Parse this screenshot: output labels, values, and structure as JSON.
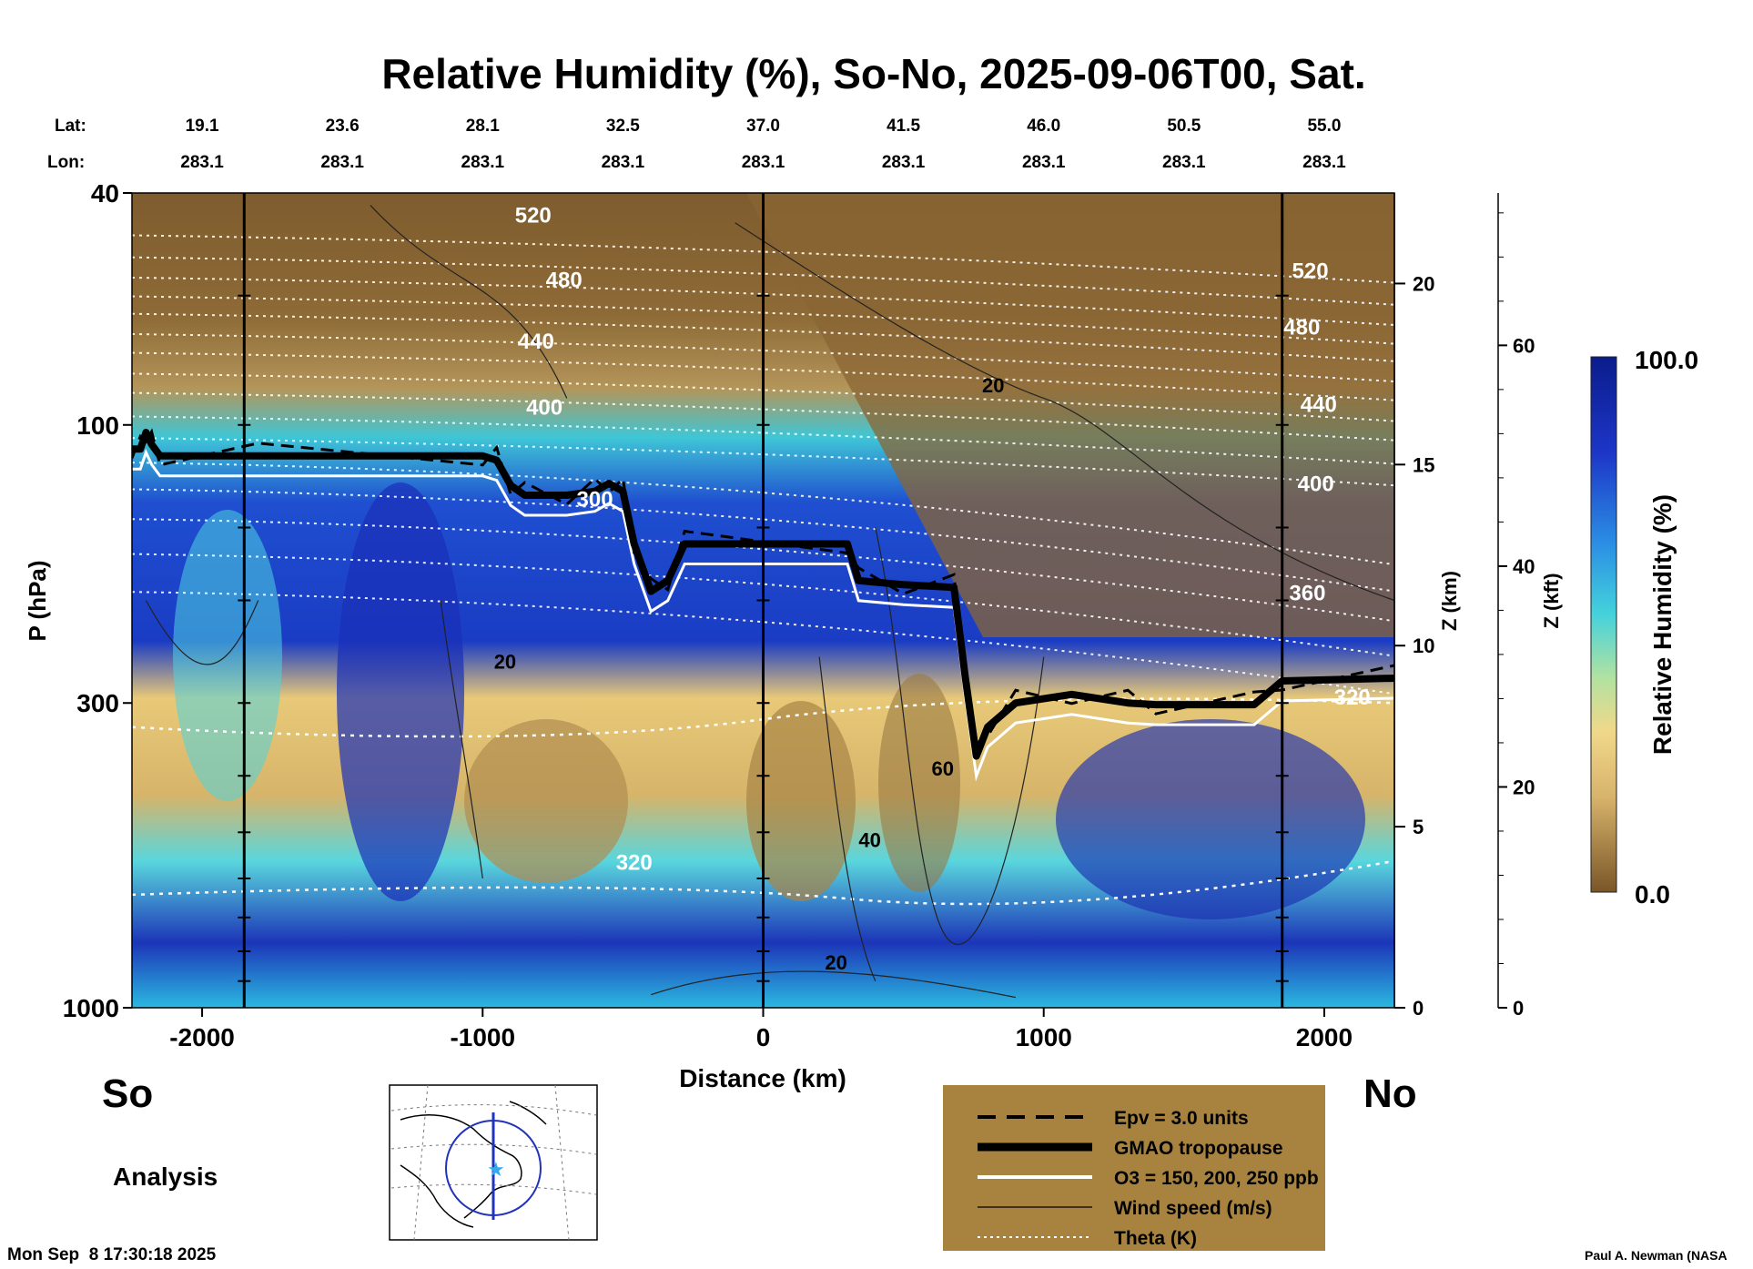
{
  "chart_data": {
    "type": "heatmap",
    "title": "Relative Humidity (%), So-No, 2025-09-06T00, Sat.",
    "xlabel": "Distance (km)",
    "ylabel": "P (hPa)",
    "z_km_label": "Z (km)",
    "z_kft_label": "Z (kft)",
    "colorbar_label": "Relative Humidity (%)",
    "colorbar_ticks": [
      "100.0",
      "0.0"
    ],
    "colorbar_range": [
      0,
      100
    ],
    "x_range": [
      -2250,
      2250
    ],
    "x_ticks": [
      -2000,
      -1000,
      0,
      1000,
      2000
    ],
    "x_tick_labels": [
      "-2000",
      "-1000",
      "0",
      "1000",
      "2000"
    ],
    "p_range_hpa": [
      1000,
      40
    ],
    "p_ticks": [
      40,
      100,
      300,
      1000
    ],
    "p_tick_labels": [
      "40",
      "100",
      "300",
      "1000"
    ],
    "z_km_ticks": [
      0,
      5,
      10,
      15,
      20
    ],
    "z_km_tick_labels": [
      "0",
      "5",
      "10",
      "15",
      "20"
    ],
    "z_kft_ticks": [
      0,
      20,
      40,
      60
    ],
    "z_kft_tick_labels": [
      "0",
      "20",
      "40",
      "60"
    ],
    "lat_label": "Lat:",
    "lon_label": "Lon:",
    "lat_values": [
      "19.1",
      "23.6",
      "28.1",
      "32.5",
      "37.0",
      "41.5",
      "46.0",
      "50.5",
      "55.0"
    ],
    "lon_values": [
      "283.1",
      "283.1",
      "283.1",
      "283.1",
      "283.1",
      "283.1",
      "283.1",
      "283.1",
      "283.1"
    ],
    "station_distances_km": [
      -2000,
      -1500,
      -1000,
      -500,
      0,
      500,
      1000,
      1500,
      2000
    ],
    "vertical_lines_km": [
      -1850,
      0,
      1850
    ],
    "end_labels": {
      "left": "So",
      "right": "No"
    },
    "theta_labels": [
      {
        "text": "520",
        "x_km": -820,
        "p": 45
      },
      {
        "text": "480",
        "x_km": -710,
        "p": 58
      },
      {
        "text": "440",
        "x_km": -810,
        "p": 74
      },
      {
        "text": "400",
        "x_km": -780,
        "p": 96
      },
      {
        "text": "520",
        "x_km": 1950,
        "p": 56
      },
      {
        "text": "480",
        "x_km": 1920,
        "p": 70
      },
      {
        "text": "440",
        "x_km": 1980,
        "p": 95
      },
      {
        "text": "400",
        "x_km": 1970,
        "p": 130
      },
      {
        "text": "360",
        "x_km": 1940,
        "p": 200
      },
      {
        "text": "320",
        "x_km": 2100,
        "p": 302
      },
      {
        "text": "300",
        "x_km": -600,
        "p": 138
      },
      {
        "text": "320",
        "x_km": -460,
        "p": 580
      }
    ],
    "wind_labels": [
      {
        "text": "20",
        "x_km": 820,
        "p": 88
      },
      {
        "text": "20",
        "x_km": -920,
        "p": 262
      },
      {
        "text": "60",
        "x_km": 640,
        "p": 400
      },
      {
        "text": "40",
        "x_km": 380,
        "p": 530
      },
      {
        "text": "20",
        "x_km": 260,
        "p": 860
      }
    ],
    "tropopause_hpa": [
      {
        "x": -2250,
        "p": 110
      },
      {
        "x": -2220,
        "p": 110
      },
      {
        "x": -2200,
        "p": 103
      },
      {
        "x": -2180,
        "p": 108
      },
      {
        "x": -2150,
        "p": 113
      },
      {
        "x": -1800,
        "p": 113
      },
      {
        "x": -1000,
        "p": 113
      },
      {
        "x": -950,
        "p": 115
      },
      {
        "x": -900,
        "p": 127
      },
      {
        "x": -850,
        "p": 132
      },
      {
        "x": -700,
        "p": 132
      },
      {
        "x": -600,
        "p": 130
      },
      {
        "x": -550,
        "p": 126
      },
      {
        "x": -500,
        "p": 130
      },
      {
        "x": -460,
        "p": 160
      },
      {
        "x": -400,
        "p": 193
      },
      {
        "x": -340,
        "p": 185
      },
      {
        "x": -280,
        "p": 160
      },
      {
        "x": 300,
        "p": 160
      },
      {
        "x": 340,
        "p": 185
      },
      {
        "x": 500,
        "p": 188
      },
      {
        "x": 680,
        "p": 190
      },
      {
        "x": 720,
        "p": 270
      },
      {
        "x": 760,
        "p": 370
      },
      {
        "x": 800,
        "p": 330
      },
      {
        "x": 900,
        "p": 300
      },
      {
        "x": 1100,
        "p": 290
      },
      {
        "x": 1300,
        "p": 300
      },
      {
        "x": 1400,
        "p": 302
      },
      {
        "x": 1750,
        "p": 302
      },
      {
        "x": 1850,
        "p": 275
      },
      {
        "x": 2250,
        "p": 272
      }
    ],
    "humidity_bands": [
      {
        "p_top": 40,
        "p_bottom": 90,
        "rh": 5
      },
      {
        "p_top": 90,
        "p_bottom": 130,
        "rh": 30
      },
      {
        "p_top": 130,
        "p_bottom": 350,
        "rh": 75
      },
      {
        "p_top": 350,
        "p_bottom": 650,
        "rh": 30
      },
      {
        "p_top": 650,
        "p_bottom": 1000,
        "rh": 85
      }
    ]
  },
  "legend": {
    "items": [
      {
        "style": "dashed",
        "label": "Epv = 3.0 units"
      },
      {
        "style": "thick",
        "label": "GMAO tropopause"
      },
      {
        "style": "white",
        "label": "O3 = 150, 200, 250 ppb"
      },
      {
        "style": "thin",
        "label": "Wind speed (m/s)"
      },
      {
        "style": "dotted",
        "label": "Theta (K)"
      }
    ]
  },
  "footer": {
    "analysis": "Analysis",
    "timestamp": "Mon Sep  8 17:30:18 2025",
    "credit": "Paul A. Newman (NASA"
  },
  "colors": {
    "background": "#ffffff",
    "legend_bg": "#a8833f",
    "dry": "#8a6634",
    "moist": "#0a1e9c"
  }
}
